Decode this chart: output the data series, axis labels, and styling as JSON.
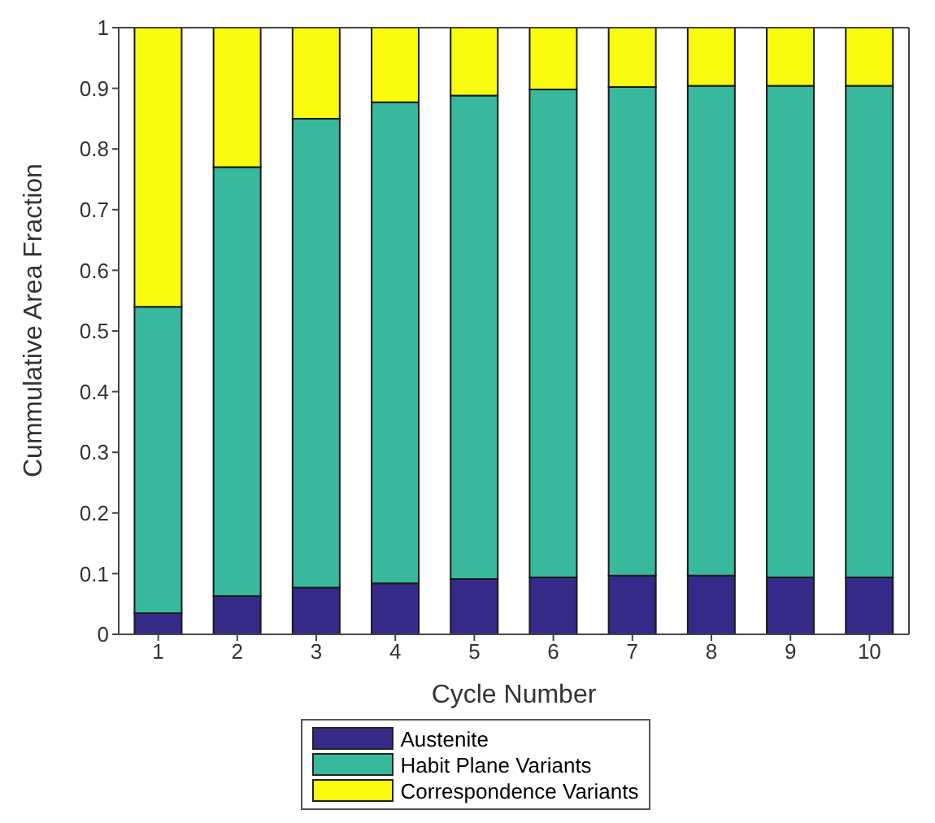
{
  "chart_data": {
    "type": "bar",
    "stacked": true,
    "xlabel": "Cycle Number",
    "ylabel": "Cummulative Area Fraction",
    "categories": [
      "1",
      "2",
      "3",
      "4",
      "5",
      "6",
      "7",
      "8",
      "9",
      "10"
    ],
    "series": [
      {
        "name": "Austenite",
        "color": "#352a87",
        "values": [
          0.035,
          0.063,
          0.077,
          0.084,
          0.091,
          0.094,
          0.097,
          0.097,
          0.094,
          0.094
        ]
      },
      {
        "name": "Habit Plane Variants",
        "color": "#38b99e",
        "values": [
          0.505,
          0.707,
          0.773,
          0.793,
          0.797,
          0.804,
          0.805,
          0.807,
          0.81,
          0.81
        ]
      },
      {
        "name": "Correspondence Variants",
        "color": "#f9fb0e",
        "values": [
          0.46,
          0.23,
          0.15,
          0.123,
          0.112,
          0.102,
          0.098,
          0.096,
          0.096,
          0.096
        ]
      }
    ],
    "ylim": [
      0,
      1
    ],
    "yticks": [
      0,
      0.1,
      0.2,
      0.3,
      0.4,
      0.5,
      0.6,
      0.7,
      0.8,
      0.9,
      1
    ],
    "grid": false,
    "legend": "bottom"
  }
}
